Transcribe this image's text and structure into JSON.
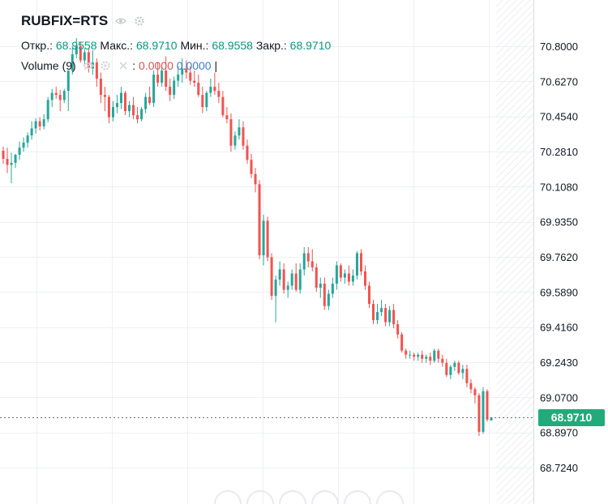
{
  "header": {
    "symbol": "RUBFIX=RTS",
    "open_label": "Откр.:",
    "open_value": "68.9558",
    "high_label": "Макс.:",
    "high_value": "68.9710",
    "low_label": "Мин.:",
    "low_value": "68.9558",
    "close_label": "Закр.:",
    "close_value": "68.9710",
    "volume_label": "Volume (9)",
    "volume_value_1": "0.0000",
    "volume_value_2": "0.0000",
    "volume_separator": "|"
  },
  "colors": {
    "up": "#26a69a",
    "down": "#ef5350",
    "grid": "#eef0f3",
    "badge": "#22ab7a",
    "scale_text": "#131722"
  },
  "last_price": "68.9710",
  "chart_data": {
    "type": "candlestick",
    "title": "RUBFIX=RTS",
    "y_ticks": [
      70.8,
      70.627,
      70.454,
      70.281,
      70.108,
      69.935,
      69.762,
      69.589,
      69.416,
      69.243,
      69.07,
      68.897,
      68.724
    ],
    "y_tick_labels": [
      "70.8000",
      "70.6270",
      "70.4540",
      "70.2810",
      "70.1080",
      "69.9350",
      "69.7620",
      "69.5890",
      "69.4160",
      "69.2430",
      "69.0700",
      "68.8970",
      "68.7240"
    ],
    "ylim": [
      68.69,
      70.87
    ],
    "last_price": 68.971,
    "grid": true,
    "candles": [
      [
        70.285,
        70.305,
        70.22,
        70.245
      ],
      [
        70.245,
        70.3,
        70.175,
        70.215
      ],
      [
        70.215,
        70.275,
        70.125,
        70.225
      ],
      [
        70.225,
        70.27,
        70.2,
        70.265
      ],
      [
        70.265,
        70.33,
        70.24,
        70.3
      ],
      [
        70.3,
        70.35,
        70.28,
        70.325
      ],
      [
        70.325,
        70.375,
        70.3,
        70.36
      ],
      [
        70.36,
        70.43,
        70.34,
        70.395
      ],
      [
        70.395,
        70.445,
        70.37,
        70.43
      ],
      [
        70.43,
        70.45,
        70.385,
        70.405
      ],
      [
        70.405,
        70.465,
        70.39,
        70.44
      ],
      [
        70.44,
        70.55,
        70.425,
        70.535
      ],
      [
        70.535,
        70.59,
        70.5,
        70.57
      ],
      [
        70.57,
        70.6,
        70.54,
        70.56
      ],
      [
        70.56,
        70.585,
        70.48,
        70.535
      ],
      [
        70.535,
        70.59,
        70.52,
        70.58
      ],
      [
        70.58,
        70.68,
        70.48,
        70.68
      ],
      [
        70.68,
        70.8,
        70.66,
        70.76
      ],
      [
        70.76,
        70.84,
        70.74,
        70.8
      ],
      [
        70.8,
        70.82,
        70.72,
        70.73
      ],
      [
        70.73,
        70.79,
        70.71,
        70.77
      ],
      [
        70.77,
        70.79,
        70.67,
        70.69
      ],
      [
        70.69,
        70.78,
        70.66,
        70.72
      ],
      [
        70.72,
        70.74,
        70.6,
        70.64
      ],
      [
        70.64,
        70.67,
        70.52,
        70.56
      ],
      [
        70.56,
        70.6,
        70.48,
        70.55
      ],
      [
        70.55,
        70.56,
        70.42,
        70.45
      ],
      [
        70.45,
        70.53,
        70.43,
        70.5
      ],
      [
        70.5,
        70.56,
        70.47,
        70.52
      ],
      [
        70.52,
        70.6,
        70.49,
        70.57
      ],
      [
        70.57,
        70.58,
        70.46,
        70.48
      ],
      [
        70.48,
        70.53,
        70.45,
        70.51
      ],
      [
        70.51,
        70.55,
        70.44,
        70.46
      ],
      [
        70.46,
        70.5,
        70.42,
        70.44
      ],
      [
        70.44,
        70.5,
        70.43,
        70.49
      ],
      [
        70.49,
        70.57,
        70.47,
        70.55
      ],
      [
        70.55,
        70.6,
        70.51,
        70.52
      ],
      [
        70.52,
        70.68,
        70.5,
        70.66
      ],
      [
        70.66,
        70.72,
        70.6,
        70.62
      ],
      [
        70.62,
        70.7,
        70.6,
        70.68
      ],
      [
        70.68,
        70.75,
        70.58,
        70.6
      ],
      [
        70.6,
        70.64,
        70.53,
        70.56
      ],
      [
        70.56,
        70.65,
        70.54,
        70.63
      ],
      [
        70.63,
        70.7,
        70.6,
        70.66
      ],
      [
        70.66,
        70.74,
        70.62,
        70.69
      ],
      [
        70.69,
        70.73,
        70.64,
        70.67
      ],
      [
        70.67,
        70.7,
        70.61,
        70.63
      ],
      [
        70.63,
        70.68,
        70.6,
        70.62
      ],
      [
        70.62,
        70.66,
        70.55,
        70.56
      ],
      [
        70.56,
        70.6,
        70.47,
        70.5
      ],
      [
        70.5,
        70.58,
        70.48,
        70.57
      ],
      [
        70.57,
        70.64,
        70.55,
        70.6
      ],
      [
        70.6,
        70.67,
        70.56,
        70.58
      ],
      [
        70.58,
        70.62,
        70.52,
        70.55
      ],
      [
        70.55,
        70.58,
        70.45,
        70.46
      ],
      [
        70.46,
        70.5,
        70.42,
        70.44
      ],
      [
        70.44,
        70.47,
        70.28,
        70.31
      ],
      [
        70.31,
        70.38,
        70.29,
        70.36
      ],
      [
        70.36,
        70.44,
        70.34,
        70.4
      ],
      [
        70.4,
        70.43,
        70.29,
        70.31
      ],
      [
        70.31,
        70.34,
        70.22,
        70.24
      ],
      [
        70.24,
        70.27,
        70.15,
        70.17
      ],
      [
        70.17,
        70.2,
        70.08,
        70.12
      ],
      [
        70.12,
        70.14,
        69.75,
        69.77
      ],
      [
        69.77,
        69.97,
        69.72,
        69.94
      ],
      [
        69.94,
        69.96,
        69.74,
        69.76
      ],
      [
        69.76,
        69.78,
        69.55,
        69.57
      ],
      [
        69.57,
        69.67,
        69.44,
        69.65
      ],
      [
        69.65,
        69.74,
        69.62,
        69.7
      ],
      [
        69.7,
        69.73,
        69.58,
        69.6
      ],
      [
        69.6,
        69.64,
        69.56,
        69.62
      ],
      [
        69.62,
        69.7,
        69.6,
        69.68
      ],
      [
        69.68,
        69.73,
        69.59,
        69.6
      ],
      [
        69.6,
        69.73,
        69.58,
        69.7
      ],
      [
        69.7,
        69.81,
        69.67,
        69.78
      ],
      [
        69.78,
        69.81,
        69.71,
        69.74
      ],
      [
        69.74,
        69.8,
        69.69,
        69.71
      ],
      [
        69.71,
        69.73,
        69.59,
        69.61
      ],
      [
        69.61,
        69.66,
        69.56,
        69.63
      ],
      [
        69.63,
        69.66,
        69.5,
        69.52
      ],
      [
        69.52,
        69.6,
        69.5,
        69.58
      ],
      [
        69.58,
        69.66,
        69.56,
        69.63
      ],
      [
        69.63,
        69.74,
        69.6,
        69.72
      ],
      [
        69.72,
        69.73,
        69.64,
        69.66
      ],
      [
        69.66,
        69.7,
        69.63,
        69.68
      ],
      [
        69.68,
        69.72,
        69.62,
        69.64
      ],
      [
        69.64,
        69.7,
        69.62,
        69.67
      ],
      [
        69.67,
        69.79,
        69.65,
        69.78
      ],
      [
        69.78,
        69.8,
        69.67,
        69.69
      ],
      [
        69.69,
        69.72,
        69.6,
        69.62
      ],
      [
        69.62,
        69.64,
        69.51,
        69.53
      ],
      [
        69.53,
        69.55,
        69.43,
        69.45
      ],
      [
        69.45,
        69.53,
        69.43,
        69.49
      ],
      [
        69.49,
        69.55,
        69.47,
        69.51
      ],
      [
        69.51,
        69.53,
        69.42,
        69.44
      ],
      [
        69.44,
        69.52,
        69.42,
        69.5
      ],
      [
        69.5,
        69.53,
        69.41,
        69.43
      ],
      [
        69.43,
        69.45,
        69.36,
        69.38
      ],
      [
        69.38,
        69.39,
        69.29,
        69.3
      ],
      [
        69.3,
        69.31,
        69.26,
        69.28
      ],
      [
        69.28,
        69.3,
        69.26,
        69.28
      ],
      [
        69.28,
        69.29,
        69.25,
        69.27
      ],
      [
        69.27,
        69.29,
        69.25,
        69.28
      ],
      [
        69.28,
        69.3,
        69.24,
        69.26
      ],
      [
        69.26,
        69.28,
        69.24,
        69.27
      ],
      [
        69.27,
        69.29,
        69.23,
        69.25
      ],
      [
        69.25,
        69.31,
        69.24,
        69.3
      ],
      [
        69.3,
        69.31,
        69.24,
        69.26
      ],
      [
        69.26,
        69.28,
        69.22,
        69.24
      ],
      [
        69.24,
        69.26,
        69.17,
        69.18
      ],
      [
        69.18,
        69.23,
        69.16,
        69.22
      ],
      [
        69.22,
        69.25,
        69.2,
        69.24
      ],
      [
        69.24,
        69.25,
        69.18,
        69.19
      ],
      [
        69.19,
        69.23,
        69.16,
        69.21
      ],
      [
        69.21,
        69.23,
        69.12,
        69.14
      ],
      [
        69.14,
        69.16,
        69.09,
        69.11
      ],
      [
        69.11,
        69.12,
        69.04,
        69.08
      ],
      [
        69.08,
        69.09,
        68.88,
        68.9
      ],
      [
        68.9,
        69.12,
        68.89,
        69.1
      ],
      [
        69.1,
        69.11,
        68.95,
        68.96
      ],
      [
        68.9558,
        68.971,
        68.9558,
        68.971
      ]
    ]
  }
}
